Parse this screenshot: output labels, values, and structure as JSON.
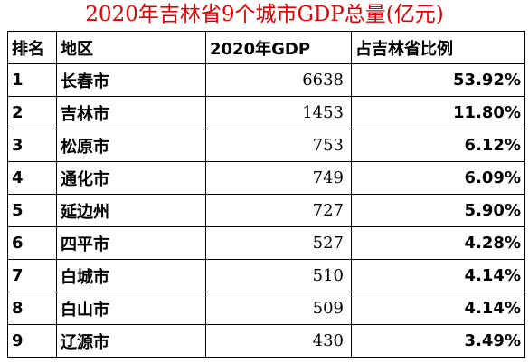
{
  "title": "2020年吉林省9个城市GDP总量(亿元)",
  "columns": [
    "排名",
    "地区",
    "2020年GDP",
    "占吉林省比例"
  ],
  "rows": [
    [
      "1",
      "长春市",
      "6638",
      "53.92%"
    ],
    [
      "2",
      "吉林市",
      "1453",
      "11.80%"
    ],
    [
      "3",
      "松原市",
      "753",
      "6.12%"
    ],
    [
      "4",
      "通化市",
      "749",
      "6.09%"
    ],
    [
      "5",
      "延边州",
      "727",
      "5.90%"
    ],
    [
      "6",
      "四平市",
      "527",
      "4.28%"
    ],
    [
      "7",
      "白城市",
      "510",
      "4.14%"
    ],
    [
      "8",
      "白山市",
      "509",
      "4.14%"
    ],
    [
      "9",
      "辽源市",
      "430",
      "3.49%"
    ]
  ]
}
